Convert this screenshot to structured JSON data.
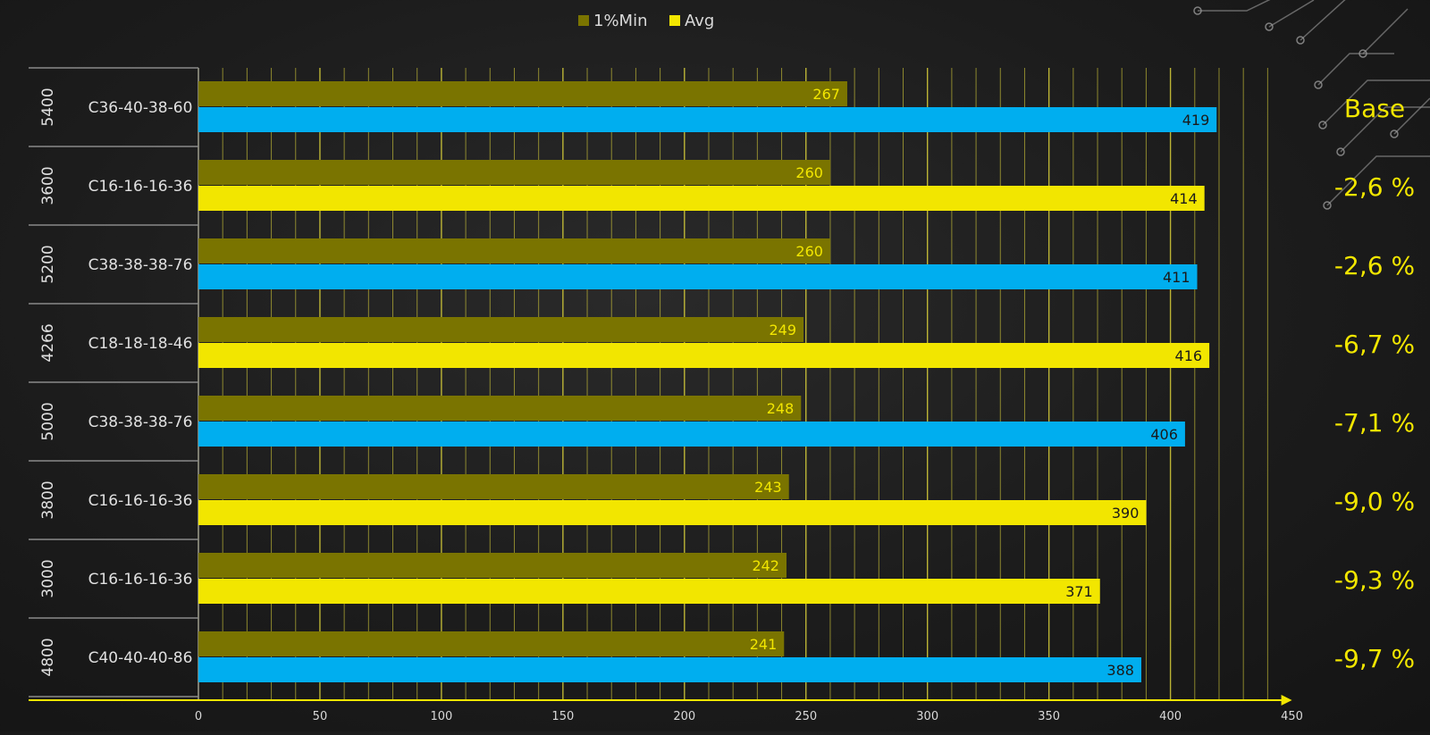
{
  "chart_data": {
    "type": "bar",
    "orientation": "horizontal",
    "legend": {
      "placement": "top-center",
      "entries": [
        {
          "label": "1%Min",
          "color": "#7a7400"
        },
        {
          "label": "Avg",
          "color": "#f2e600"
        }
      ]
    },
    "colors": {
      "min_bar": "#7a7400",
      "avg_bar_default": "#f2e600",
      "avg_bar_highlight": "#00aeef",
      "grid": "#d8cf3a",
      "axis": "#f2e600",
      "text_accent": "#f2e600"
    },
    "xlim": [
      0,
      450
    ],
    "xticks": [
      0,
      50,
      100,
      150,
      200,
      250,
      300,
      350,
      400,
      450
    ],
    "grid": true,
    "categories": [
      {
        "speed": "5400",
        "timings": "C36-40-38-60",
        "min": 267,
        "avg": 419,
        "highlight": true,
        "pct": "Base"
      },
      {
        "speed": "3600",
        "timings": "C16-16-16-36",
        "min": 260,
        "avg": 414,
        "highlight": false,
        "pct": "-2,6 %"
      },
      {
        "speed": "5200",
        "timings": "C38-38-38-76",
        "min": 260,
        "avg": 411,
        "highlight": true,
        "pct": "-2,6 %"
      },
      {
        "speed": "4266",
        "timings": "C18-18-18-46",
        "min": 249,
        "avg": 416,
        "highlight": false,
        "pct": "-6,7 %"
      },
      {
        "speed": "5000",
        "timings": "C38-38-38-76",
        "min": 248,
        "avg": 406,
        "highlight": true,
        "pct": "-7,1 %"
      },
      {
        "speed": "3800",
        "timings": "C16-16-16-36",
        "min": 243,
        "avg": 390,
        "highlight": false,
        "pct": "-9,0 %"
      },
      {
        "speed": "3000",
        "timings": "C16-16-16-36",
        "min": 242,
        "avg": 371,
        "highlight": false,
        "pct": "-9,3 %"
      },
      {
        "speed": "4800",
        "timings": "C40-40-40-86",
        "min": 241,
        "avg": 388,
        "highlight": true,
        "pct": "-9,7 %"
      }
    ]
  }
}
